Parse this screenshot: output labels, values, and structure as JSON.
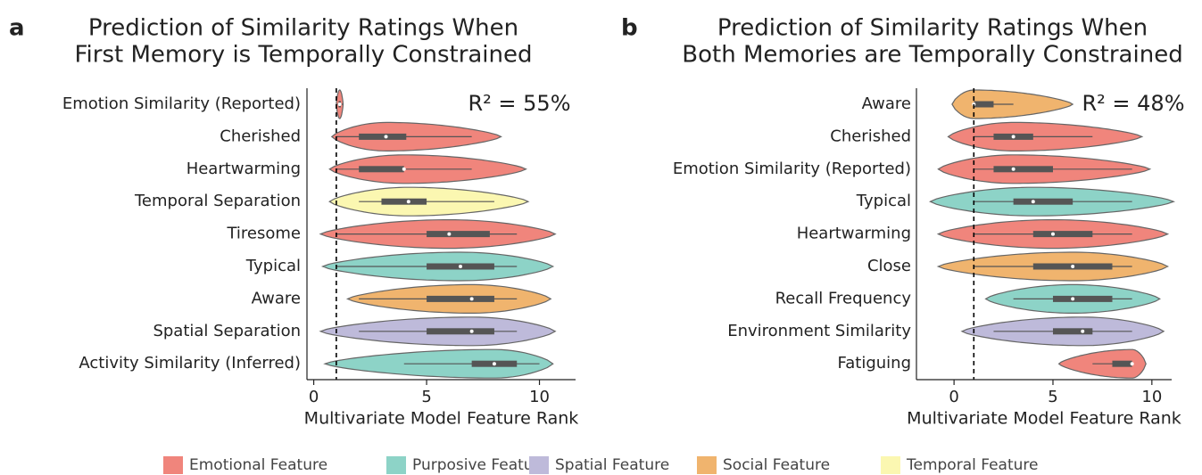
{
  "chart_data": [
    {
      "type": "violin",
      "panel": "a",
      "title": [
        "Prediction of Similarity Ratings When",
        "First Memory is Temporally Constrained"
      ],
      "annotation": "R² = 55%",
      "x_label": "Multivariate Model Feature Rank",
      "xlim": [
        -0.3,
        11.6
      ],
      "xticks": [
        0,
        5,
        10
      ],
      "reference_line": 1,
      "categories": [
        "Emotion Similarity (Reported)",
        "Cherished",
        "Heartwarming",
        "Temporal Separation",
        "Tiresome",
        "Typical",
        "Aware",
        "Spatial Separation",
        "Activity Similarity (Inferred)"
      ],
      "group": [
        "Emotional Feature",
        "Emotional Feature",
        "Emotional Feature",
        "Temporal Feature",
        "Emotional Feature",
        "Purposive Feature",
        "Social Feature",
        "Spatial Feature",
        "Purposive Feature"
      ],
      "min": [
        1.0,
        0.8,
        0.7,
        0.7,
        0.3,
        0.4,
        1.5,
        0.3,
        0.5
      ],
      "whisker_low": [
        1.0,
        1.0,
        1.0,
        2.0,
        1.0,
        1.0,
        2.0,
        2.0,
        4.0
      ],
      "q1": [
        1.1,
        2.0,
        2.0,
        3.0,
        5.0,
        5.0,
        5.0,
        5.0,
        7.0
      ],
      "median": [
        1.15,
        3.2,
        4.0,
        4.2,
        6.0,
        6.5,
        7.0,
        7.0,
        8.0
      ],
      "q3": [
        1.2,
        4.1,
        4.0,
        5.0,
        7.8,
        8.0,
        8.0,
        8.0,
        9.0
      ],
      "whisker_high": [
        1.3,
        7.0,
        7.0,
        8.0,
        9.0,
        9.0,
        9.0,
        9.0,
        10.0
      ],
      "max": [
        1.3,
        8.3,
        9.4,
        9.5,
        10.7,
        10.6,
        10.5,
        10.7,
        10.6
      ]
    },
    {
      "type": "violin",
      "panel": "b",
      "title": [
        "Prediction of Similarity Ratings When",
        "Both Memories are Temporally Constrained"
      ],
      "annotation": "R² = 48%",
      "x_label": "Multivariate Model Feature Rank",
      "xlim": [
        -1.9,
        11.0
      ],
      "xticks": [
        0,
        5,
        10
      ],
      "reference_line": 1,
      "categories": [
        "Aware",
        "Cherished",
        "Emotion Similarity (Reported)",
        "Typical",
        "Heartwarming",
        "Close",
        "Recall Frequency",
        "Environment Similarity",
        "Fatiguing"
      ],
      "group": [
        "Social Feature",
        "Emotional Feature",
        "Emotional Feature",
        "Purposive Feature",
        "Emotional Feature",
        "Social Feature",
        "Purposive Feature",
        "Spatial Feature",
        "Emotional Feature"
      ],
      "min": [
        -0.1,
        -0.3,
        -0.8,
        -1.2,
        -0.8,
        -0.8,
        1.6,
        0.4,
        5.3
      ],
      "whisker_low": [
        1.0,
        1.0,
        1.0,
        1.0,
        1.0,
        1.0,
        3.0,
        2.0,
        7.0
      ],
      "q1": [
        1.0,
        2.0,
        2.0,
        3.0,
        4.0,
        4.0,
        5.0,
        5.0,
        8.0
      ],
      "median": [
        1.0,
        3.0,
        3.0,
        4.0,
        5.0,
        6.0,
        6.0,
        6.5,
        9.0
      ],
      "q3": [
        2.0,
        4.0,
        5.0,
        6.0,
        7.0,
        8.0,
        8.0,
        7.0,
        9.0
      ],
      "whisker_high": [
        3.0,
        7.0,
        9.0,
        9.0,
        9.0,
        9.0,
        9.0,
        9.0,
        9.0
      ],
      "max": [
        6.0,
        9.5,
        9.9,
        11.1,
        10.8,
        10.8,
        10.4,
        10.6,
        9.7
      ]
    }
  ],
  "legend": [
    {
      "name": "Emotional Feature",
      "color": "#f0857c"
    },
    {
      "name": "Purposive Feature",
      "color": "#8dd3c7"
    },
    {
      "name": "Spatial Feature",
      "color": "#bebada"
    },
    {
      "name": "Social Feature",
      "color": "#f0b46e"
    },
    {
      "name": "Temporal Feature",
      "color": "#fbf7b1"
    }
  ]
}
